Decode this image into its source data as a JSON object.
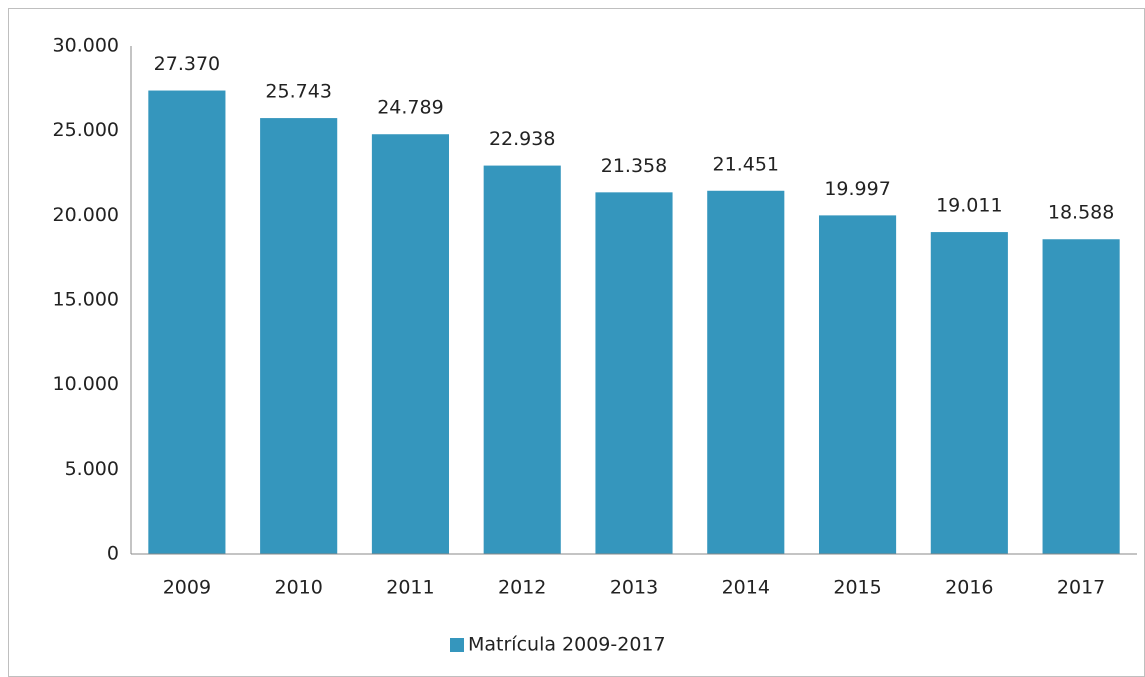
{
  "chart_data": {
    "type": "bar",
    "categories": [
      "2009",
      "2010",
      "2011",
      "2012",
      "2013",
      "2014",
      "2015",
      "2016",
      "2017"
    ],
    "series": [
      {
        "name": "Matrícula 2009-2017",
        "color": "#3596bd",
        "values": [
          27370,
          25743,
          24789,
          22938,
          21358,
          21451,
          19997,
          19011,
          18588
        ],
        "value_labels": [
          "27.370",
          "25.743",
          "24.789",
          "22.938",
          "21.358",
          "21.451",
          "19.997",
          "19.011",
          "18.588"
        ]
      }
    ],
    "ylim": [
      0,
      30000
    ],
    "yticks": [
      0,
      {
        "value": 5000,
        "label": "5.000"
      },
      {
        "value": 10000,
        "label": "10.000"
      },
      {
        "value": 15000,
        "label": "15.000"
      },
      {
        "value": 20000,
        "label": "20.000"
      },
      {
        "value": 25000,
        "label": "25.000"
      },
      {
        "value": 30000,
        "label": "30.000"
      }
    ],
    "grid": false,
    "legend": "bottom"
  }
}
